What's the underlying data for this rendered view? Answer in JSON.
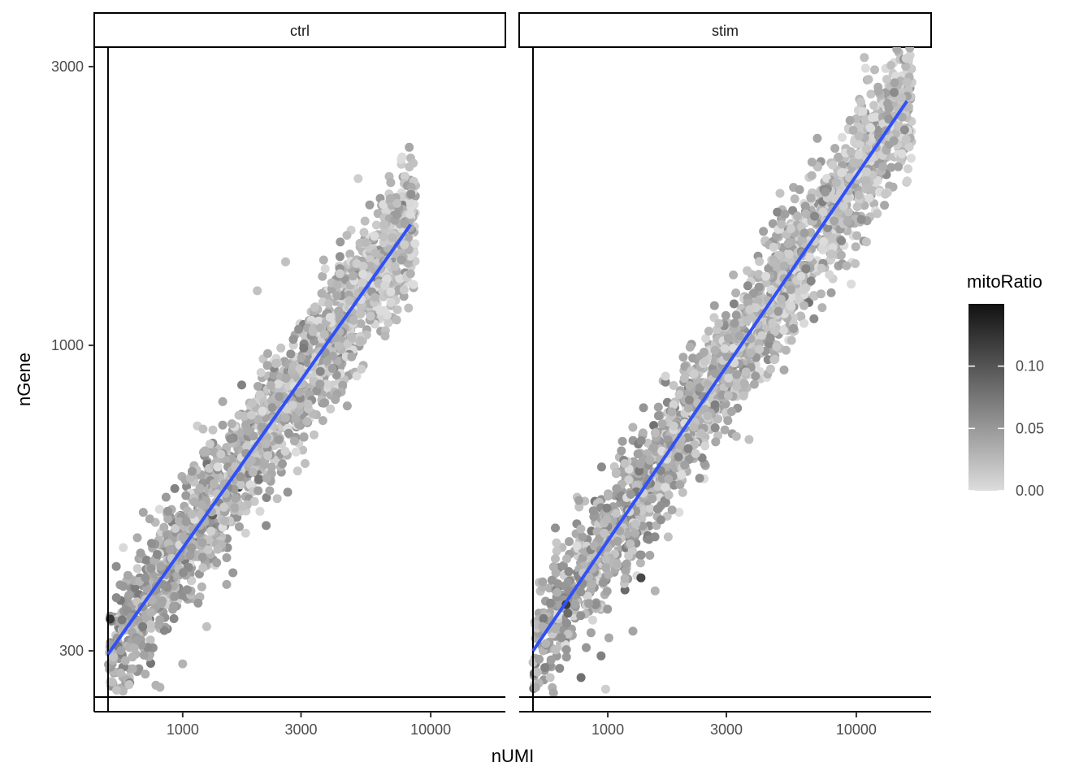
{
  "chart_data": {
    "type": "scatter",
    "x_scale": "log10",
    "y_scale": "log10",
    "xlabel": "nUMI",
    "ylabel": "nGene",
    "xlim": [
      440,
      20000
    ],
    "ylim": [
      236,
      3240
    ],
    "x_ticks": [
      1000,
      3000,
      10000
    ],
    "x_tick_labels": [
      "1000",
      "3000",
      "10000"
    ],
    "y_ticks": [
      300,
      1000,
      3000
    ],
    "y_tick_labels": [
      "300",
      "1000",
      "3000"
    ],
    "color_encoding": {
      "variable": "mitoRatio",
      "title": "mitoRatio",
      "range": [
        0,
        0.15
      ],
      "low_color": "#dcdcdc",
      "high_color": "#111111",
      "ticks": [
        0.0,
        0.05,
        0.1
      ],
      "tick_labels": [
        "0.00",
        "0.05",
        "0.10"
      ]
    },
    "trend_color": "#3050f8",
    "threshold_color": "#000000",
    "facets": [
      {
        "strip_label": "ctrl",
        "vertical_threshold_x": 500,
        "horizontal_threshold_y": 250,
        "trend_line": [
          [
            500,
            296
          ],
          [
            8300,
            1610
          ]
        ],
        "approx_point_count": 2000,
        "highlighted_points": [
          {
            "x": 8500,
            "y": 2050,
            "mitoRatio": 0.02
          },
          {
            "x": 8200,
            "y": 2020,
            "mitoRatio": 0.02
          },
          {
            "x": 5100,
            "y": 1930,
            "mitoRatio": 0.01
          },
          {
            "x": 6900,
            "y": 1900,
            "mitoRatio": 0.03
          },
          {
            "x": 2600,
            "y": 1390,
            "mitoRatio": 0.02
          },
          {
            "x": 2000,
            "y": 1240,
            "mitoRatio": 0.02
          },
          {
            "x": 3700,
            "y": 1400,
            "mitoRatio": 0.03
          },
          {
            "x": 1750,
            "y": 530,
            "mitoRatio": 0.02
          },
          {
            "x": 2770,
            "y": 790,
            "mitoRatio": 0.01
          },
          {
            "x": 1250,
            "y": 330,
            "mitoRatio": 0.02
          },
          {
            "x": 1000,
            "y": 285,
            "mitoRatio": 0.03
          },
          {
            "x": 780,
            "y": 262,
            "mitoRatio": 0.03
          },
          {
            "x": 870,
            "y": 520,
            "mitoRatio": 0.05
          },
          {
            "x": 540,
            "y": 370,
            "mitoRatio": 0.06
          },
          {
            "x": 690,
            "y": 330,
            "mitoRatio": 0.07
          },
          {
            "x": 510,
            "y": 340,
            "mitoRatio": 0.12
          },
          {
            "x": 1630,
            "y": 620,
            "mitoRatio": 0.02
          },
          {
            "x": 1230,
            "y": 660,
            "mitoRatio": 0.03
          },
          {
            "x": 5300,
            "y": 1280,
            "mitoRatio": 0.01
          },
          {
            "x": 5200,
            "y": 1130,
            "mitoRatio": 0.02
          }
        ]
      },
      {
        "strip_label": "stim",
        "vertical_threshold_x": 500,
        "horizontal_threshold_y": 250,
        "trend_line": [
          [
            500,
            300
          ],
          [
            16000,
            2620
          ]
        ],
        "approx_point_count": 2200,
        "highlighted_points": [
          {
            "x": 16000,
            "y": 2820,
            "mitoRatio": 0.02
          },
          {
            "x": 14200,
            "y": 2710,
            "mitoRatio": 0.06
          },
          {
            "x": 13500,
            "y": 2440,
            "mitoRatio": 0.05
          },
          {
            "x": 11000,
            "y": 1980,
            "mitoRatio": 0.01
          },
          {
            "x": 8600,
            "y": 1820,
            "mitoRatio": 0.01
          },
          {
            "x": 8900,
            "y": 1730,
            "mitoRatio": 0.01
          },
          {
            "x": 7500,
            "y": 1830,
            "mitoRatio": 0.05
          },
          {
            "x": 9900,
            "y": 1380,
            "mitoRatio": 0.02
          },
          {
            "x": 3200,
            "y": 1320,
            "mitoRatio": 0.03
          },
          {
            "x": 2800,
            "y": 1090,
            "mitoRatio": 0.02
          },
          {
            "x": 1750,
            "y": 470,
            "mitoRatio": 0.02
          },
          {
            "x": 1360,
            "y": 400,
            "mitoRatio": 0.11
          },
          {
            "x": 680,
            "y": 360,
            "mitoRatio": 0.12
          },
          {
            "x": 780,
            "y": 270,
            "mitoRatio": 0.08
          },
          {
            "x": 980,
            "y": 258,
            "mitoRatio": 0.01
          },
          {
            "x": 640,
            "y": 280,
            "mitoRatio": 0.06
          },
          {
            "x": 3700,
            "y": 690,
            "mitoRatio": 0.02
          },
          {
            "x": 1550,
            "y": 380,
            "mitoRatio": 0.03
          }
        ]
      }
    ]
  }
}
